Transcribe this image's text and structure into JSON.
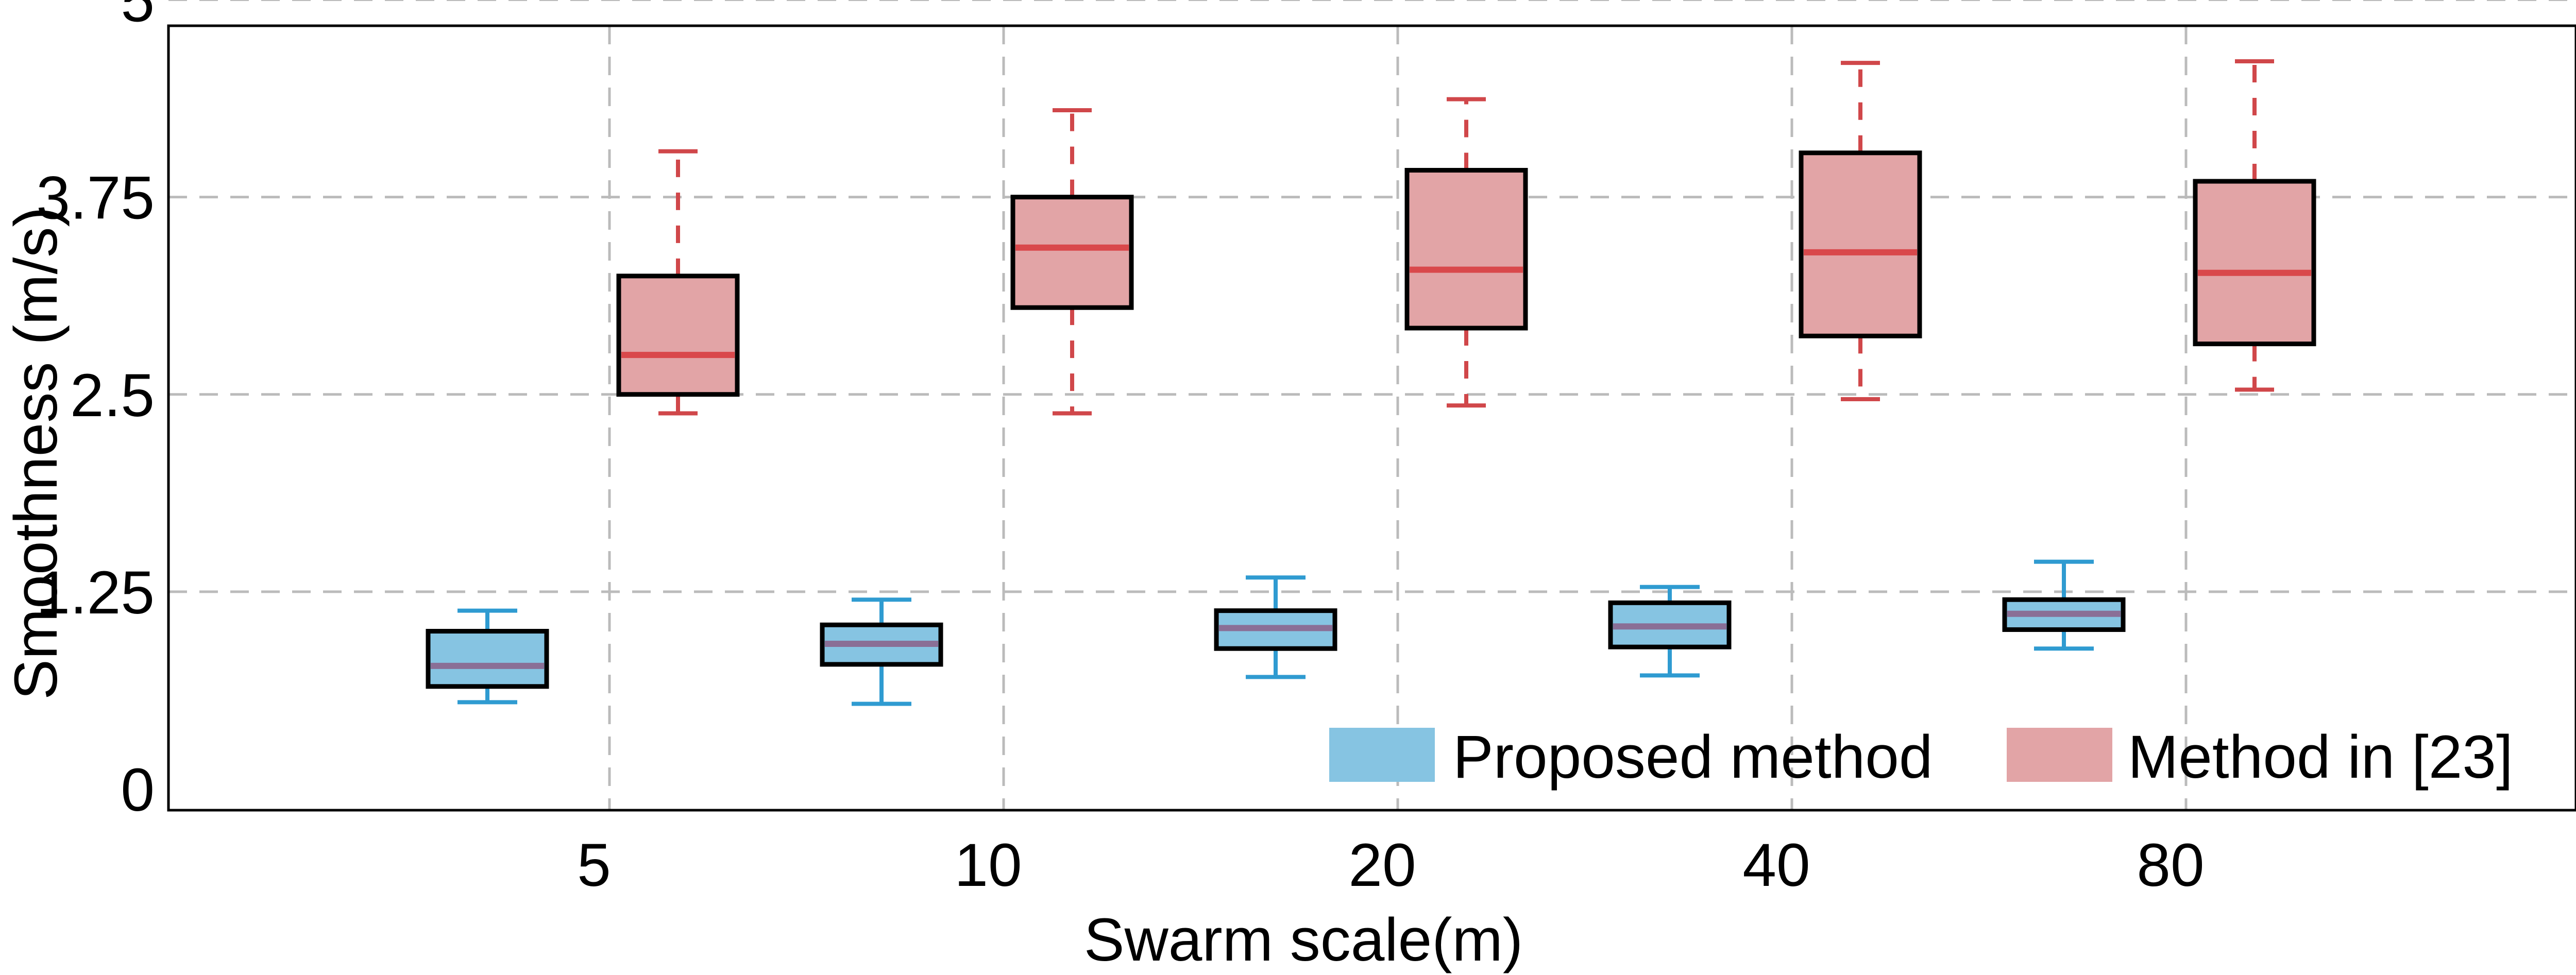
{
  "chart_data": {
    "type": "box",
    "title": "",
    "xlabel": "Swarm scale(m)",
    "ylabel": "Smoothness (m/s)",
    "categories": [
      "5",
      "10",
      "20",
      "40",
      "80"
    ],
    "y_ticks": [
      "0",
      "1.25",
      "2.5",
      "3.75",
      "5"
    ],
    "ylim": [
      0,
      5
    ],
    "grid": true,
    "legend_position": "bottom-right",
    "colors": {
      "proposed_fill": "#86c4e2",
      "proposed_line": "#2f9bd1",
      "proposed_median": "#8a6f96",
      "method23_fill": "#e2a4a6",
      "method23_line": "#d0474a",
      "method23_median": "#d9484b",
      "box_edge": "#000000",
      "grid": "#bbbbbb"
    },
    "series": [
      {
        "name": "Proposed method",
        "boxes": [
          {
            "category": "5",
            "whisker_low": 0.55,
            "q1": 0.65,
            "median": 0.78,
            "q3": 1.0,
            "whisker_high": 1.13
          },
          {
            "category": "10",
            "whisker_low": 0.54,
            "q1": 0.79,
            "median": 0.92,
            "q3": 1.04,
            "whisker_high": 1.2
          },
          {
            "category": "20",
            "whisker_low": 0.71,
            "q1": 0.89,
            "median": 1.02,
            "q3": 1.13,
            "whisker_high": 1.34
          },
          {
            "category": "40",
            "whisker_low": 0.72,
            "q1": 0.9,
            "median": 1.03,
            "q3": 1.18,
            "whisker_high": 1.28
          },
          {
            "category": "80",
            "whisker_low": 0.89,
            "q1": 1.01,
            "median": 1.11,
            "q3": 1.2,
            "whisker_high": 1.44
          }
        ]
      },
      {
        "name": "Method in [23]",
        "boxes": [
          {
            "category": "5",
            "whisker_low": 2.38,
            "q1": 2.5,
            "median": 2.75,
            "q3": 3.25,
            "whisker_high": 4.04
          },
          {
            "category": "10",
            "whisker_low": 2.38,
            "q1": 3.05,
            "median": 3.43,
            "q3": 3.75,
            "whisker_high": 4.3
          },
          {
            "category": "20",
            "whisker_low": 2.43,
            "q1": 2.92,
            "median": 3.29,
            "q3": 3.92,
            "whisker_high": 4.37
          },
          {
            "category": "40",
            "whisker_low": 2.47,
            "q1": 2.87,
            "median": 3.4,
            "q3": 4.03,
            "whisker_high": 4.6
          },
          {
            "category": "80",
            "whisker_low": 2.53,
            "q1": 2.82,
            "median": 3.27,
            "q3": 3.85,
            "whisker_high": 4.61
          }
        ]
      }
    ]
  }
}
